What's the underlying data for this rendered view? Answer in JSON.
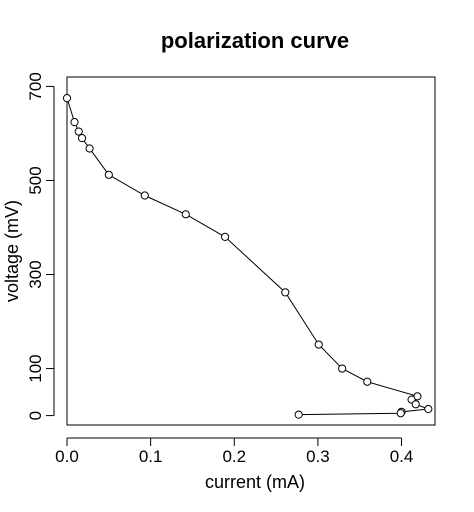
{
  "chart_data": {
    "type": "line",
    "title": "polarization curve",
    "xlabel": "current (mA)",
    "ylabel": "voltage (mV)",
    "xlim": [
      0,
      0.44
    ],
    "ylim": [
      -20,
      720
    ],
    "xticks": [
      0.0,
      0.1,
      0.2,
      0.3,
      0.4
    ],
    "xtick_labels": [
      "0.0",
      "0.1",
      "0.2",
      "0.3",
      "0.4"
    ],
    "yticks": [
      0,
      100,
      300,
      500,
      700
    ],
    "ytick_labels": [
      "0",
      "100",
      "300",
      "500",
      "700"
    ],
    "grid": false,
    "marker": "open-circle",
    "series": [
      {
        "x": [
          0.0,
          0.009,
          0.014,
          0.018,
          0.027,
          0.05,
          0.093,
          0.142,
          0.189,
          0.261,
          0.301,
          0.329,
          0.359,
          0.419,
          0.412,
          0.417,
          0.432,
          0.4,
          0.399,
          0.277
        ],
        "y": [
          675,
          624,
          604,
          590,
          568,
          512,
          468,
          428,
          380,
          262,
          151,
          100,
          72,
          41,
          34,
          24,
          14,
          8,
          5,
          2
        ]
      }
    ]
  }
}
